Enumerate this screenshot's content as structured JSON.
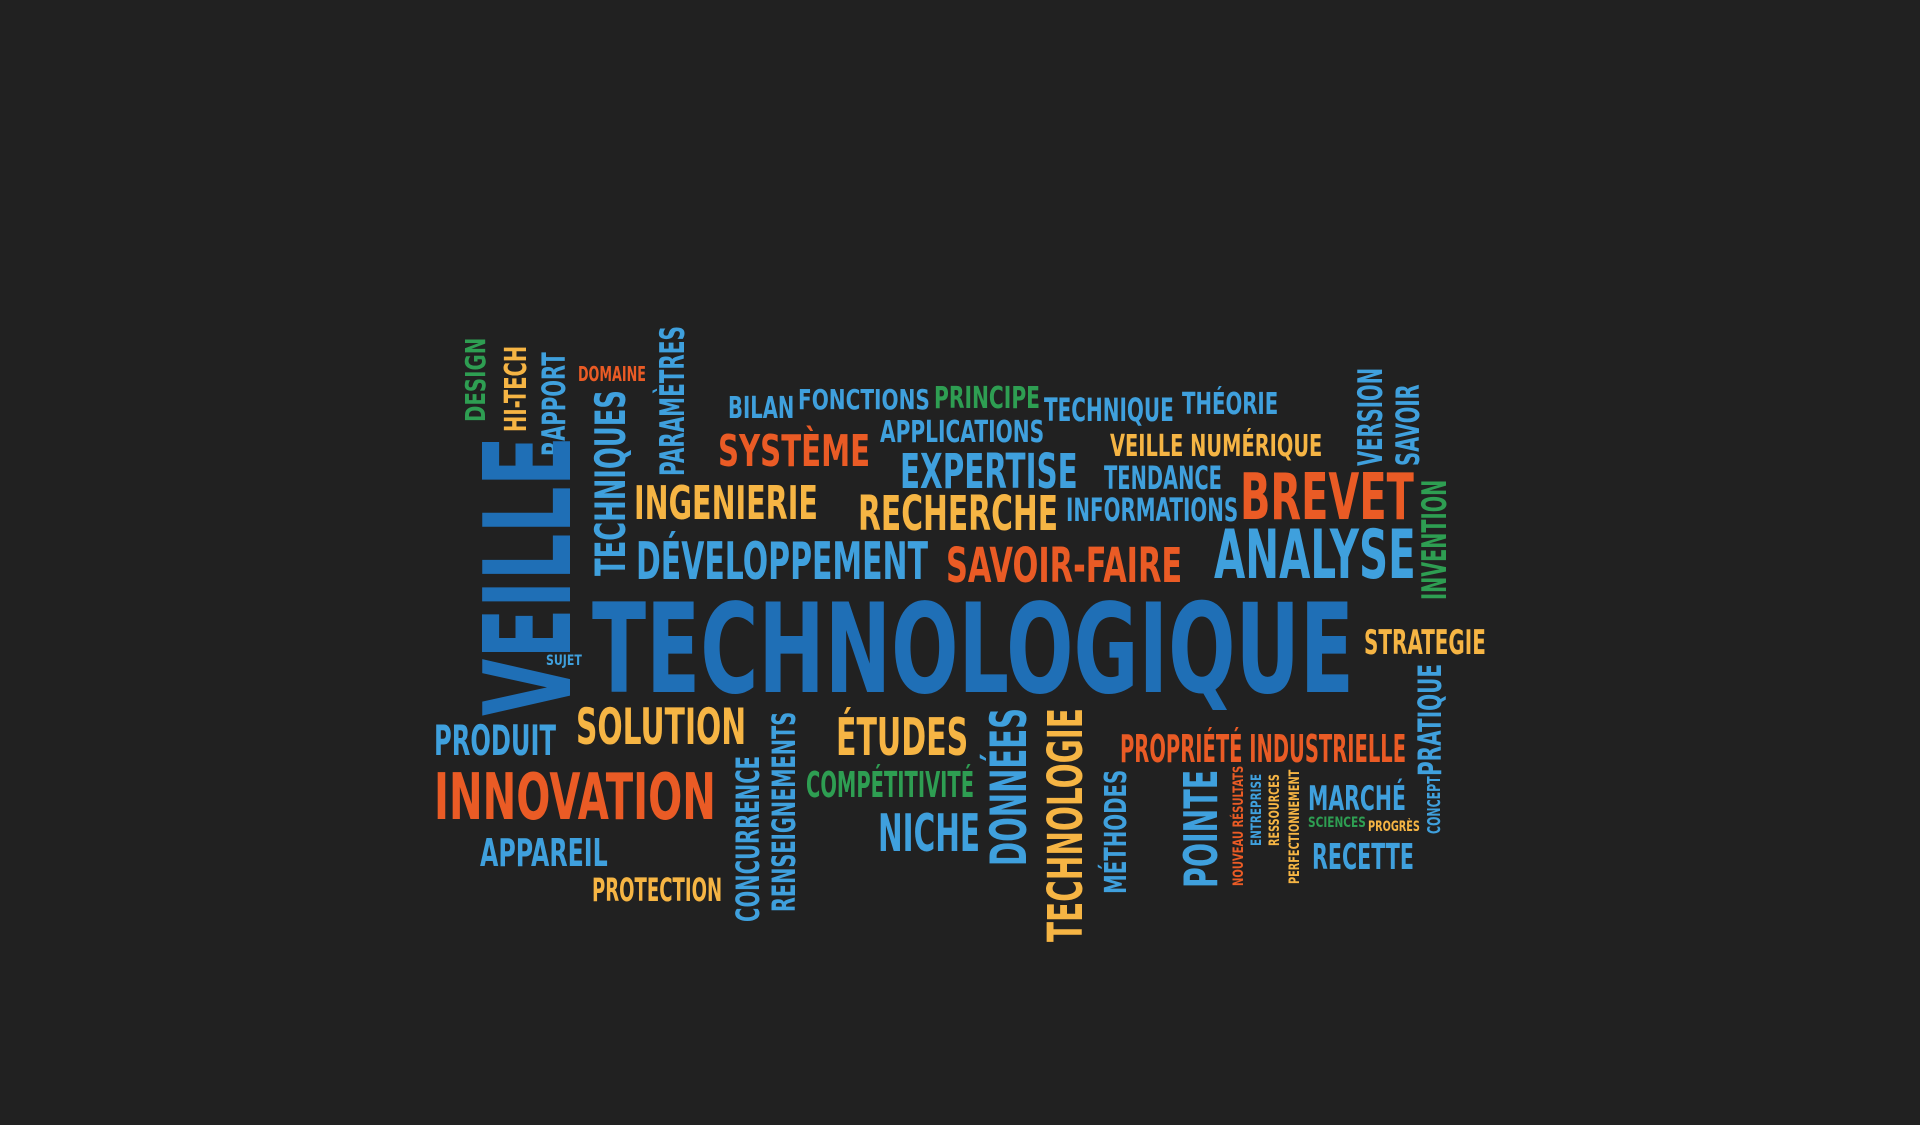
{
  "colors": {
    "background": "#212121",
    "dark_blue": "#1f6fb6",
    "light_blue": "#3fa0dd",
    "orange": "#ea5b25",
    "yellow": "#f6b544",
    "green": "#2e9e52"
  },
  "words": {
    "veille": "VEILLE",
    "technologique": "TECHNOLOGIQUE",
    "design": "DESIGN",
    "hi_tech": "HI-TECH",
    "rapport": "RAPPORT",
    "domaine": "DOMAINE",
    "techniques": "TECHNIQUES",
    "parametres": "PARAMÈTRES",
    "bilan": "BILAN",
    "fonctions": "FONCTIONS",
    "principe": "PRINCIPE",
    "technique": "TECHNIQUE",
    "theorie": "THÉORIE",
    "version": "VERSION",
    "savoir": "SAVOIR",
    "systeme": "SYSTÈME",
    "applications": "APPLICATIONS",
    "veille_numerique": "VEILLE NUMÉRIQUE",
    "ingenierie": "INGENIERIE",
    "expertise": "EXPERTISE",
    "tendance": "TENDANCE",
    "brevet": "BREVET",
    "recherche": "RECHERCHE",
    "informations": "INFORMATIONS",
    "invention": "INVENTION",
    "developpement": "DÉVELOPPEMENT",
    "savoir_faire": "SAVOIR-FAIRE",
    "analyse": "ANALYSE",
    "strategie": "STRATEGIE",
    "sujet": "SUJET",
    "pratique": "PRATIQUE",
    "produit": "PRODUIT",
    "solution": "SOLUTION",
    "etudes": "ÉTUDES",
    "propriete_industrielle": "PROPRIÉTÉ INDUSTRIELLE",
    "innovation": "INNOVATION",
    "concurrence": "CONCURRENCE",
    "renseignements": "RENSEIGNEMENTS",
    "competitivite": "COMPÉTITIVITÉ",
    "donnees": "DONNÉES",
    "technologie": "TECHNOLOGIE",
    "methodes": "MÉTHODES",
    "pointe": "POINTE",
    "nouveau_resultats": "NOUVEAU RÉSULTATS",
    "entreprise": "ENTREPRISE",
    "ressources": "RESSOURCES",
    "perfectionnement": "PERFECTIONNEMENT",
    "marche": "MARCHÉ",
    "sciences": "SCIENCES",
    "progres": "PROGRÈS",
    "concept": "CONCEPT",
    "niche": "NICHE",
    "appareil": "APPAREIL",
    "protection": "PROTECTION",
    "recette": "RECETTE"
  }
}
